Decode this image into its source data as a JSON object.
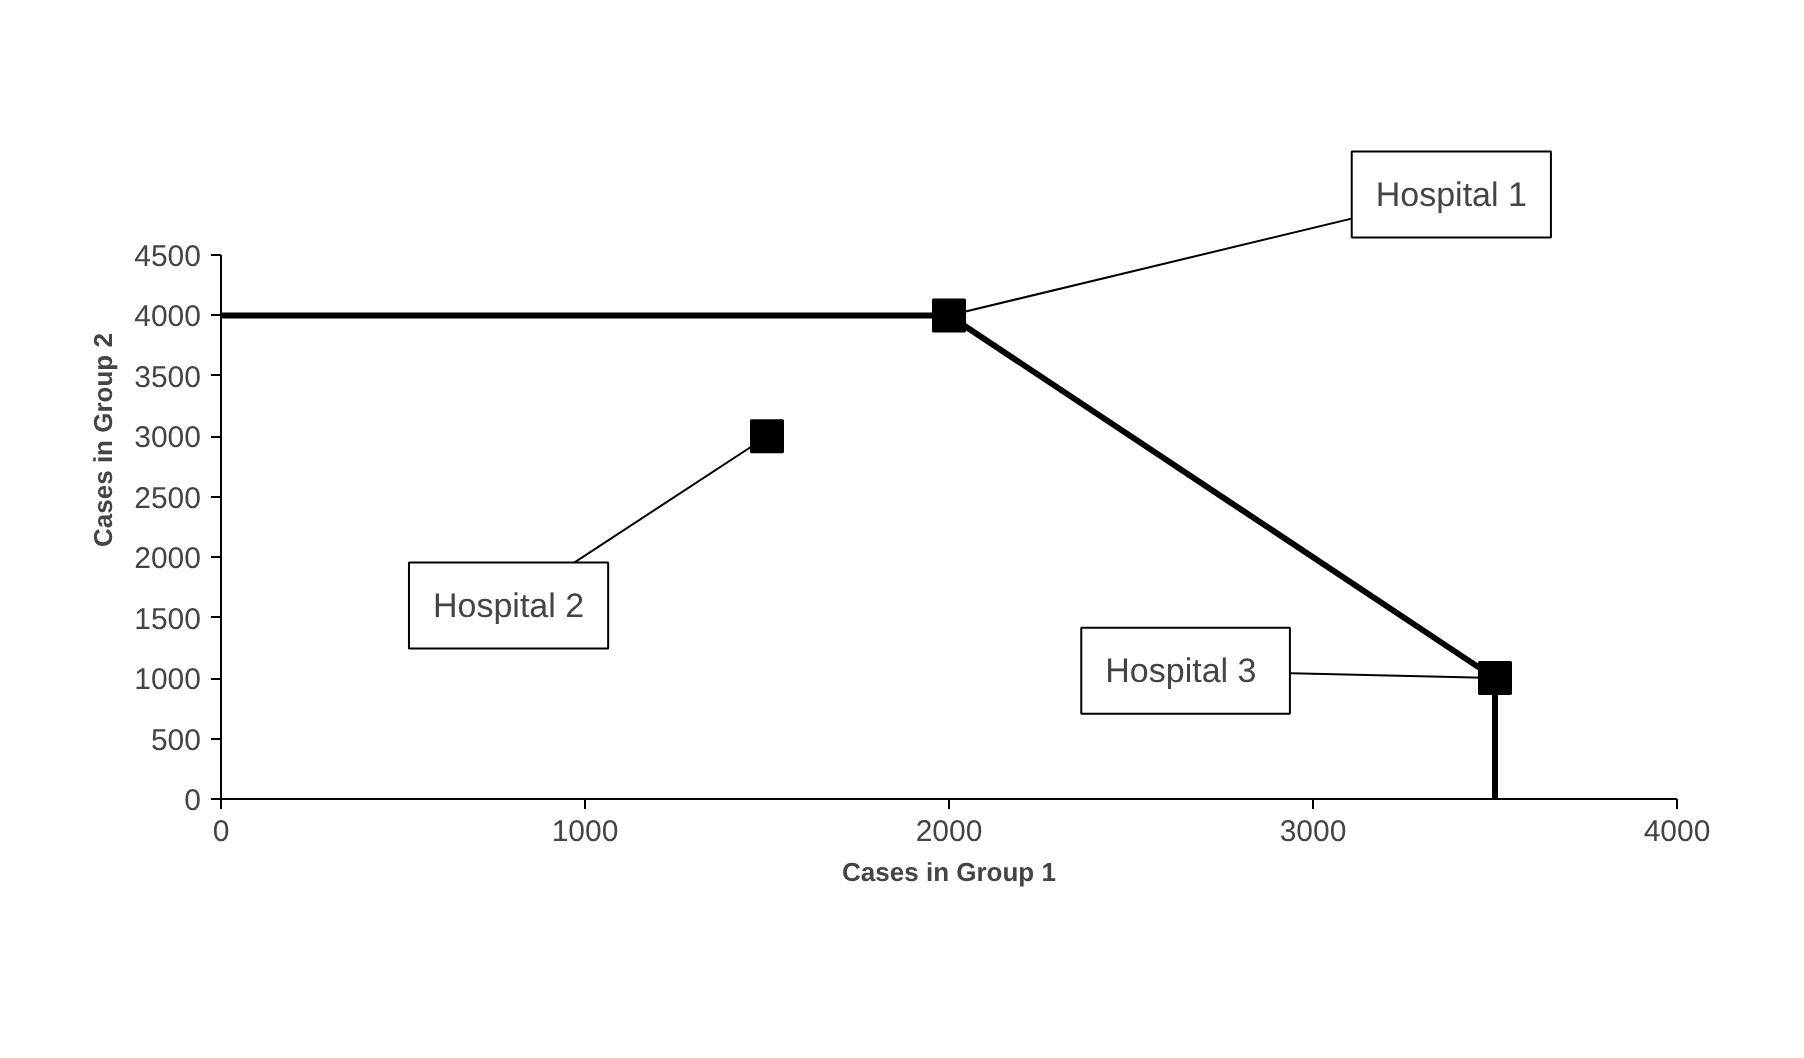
{
  "chart_data": {
    "type": "scatter",
    "xlabel": "Cases in Group 1",
    "ylabel": "Cases in Group 2",
    "xlim": [
      0,
      4000
    ],
    "ylim": [
      0,
      4500
    ],
    "xticks": [
      0,
      1000,
      2000,
      3000,
      4000
    ],
    "yticks": [
      0,
      500,
      1000,
      1500,
      2000,
      2500,
      3000,
      3500,
      4000,
      4500
    ],
    "grid": false,
    "marker": "square",
    "series": [
      {
        "type": "line",
        "color": "#000000",
        "x": [
          0,
          2000,
          3500,
          3500
        ],
        "values": [
          4000,
          4000,
          1000,
          0
        ],
        "marker": "none",
        "line_style": "solid"
      },
      {
        "color": "#000000",
        "x": [
          2000,
          1500,
          3500
        ],
        "values": [
          4000,
          3000,
          1000
        ]
      }
    ],
    "annotations": [
      {
        "text": "Hospital 1",
        "x": 2000,
        "y": 4000
      },
      {
        "text": "Hospital 2",
        "x": 1500,
        "y": 3000
      },
      {
        "text": "Hospital  3",
        "x": 3500,
        "y": 1000
      }
    ]
  }
}
